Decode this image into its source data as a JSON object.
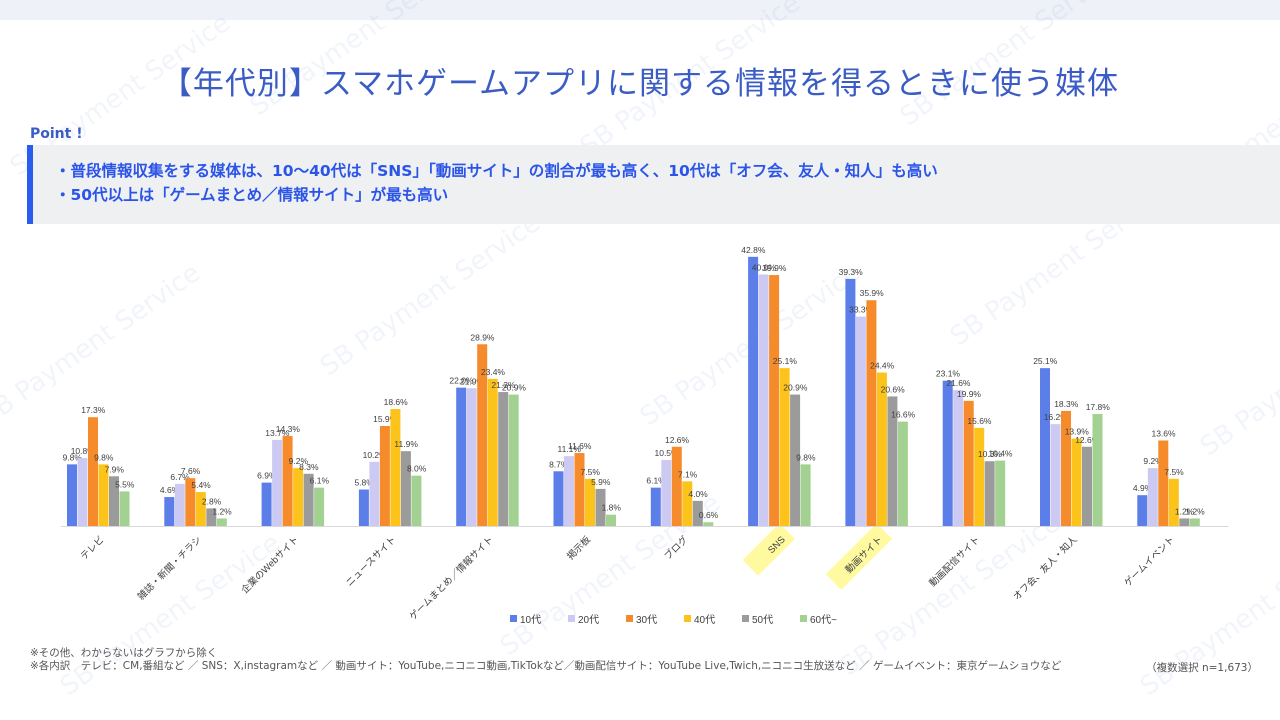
{
  "title": "【年代別】スマホゲームアプリに関する情報を得るときに使う媒体",
  "point": {
    "label": "Point !",
    "lines": [
      "・普段情報収集をする媒体は、10～40代は「SNS」「動画サイト」の割合が最も高く、10代は「オフ会、友人・知人」も高い",
      "・50代以上は「ゲームまとめ／情報サイト」が最も高い"
    ]
  },
  "watermark": "SB Payment Service",
  "chart_data": {
    "type": "bar",
    "categories": [
      "テレビ",
      "雑誌・新聞・チラシ",
      "企業のWebサイト",
      "ニュースサイト",
      "ゲームまとめ／情報サイト",
      "掲示板",
      "ブログ",
      "SNS",
      "動画サイト",
      "動画配信サイト",
      "オフ会、友人・知人",
      "ゲームイベント"
    ],
    "highlighted_categories": [
      "SNS",
      "動画サイト"
    ],
    "highlight_color": "#fffaa0",
    "series": [
      {
        "name": "10代",
        "color": "#5b7ee8",
        "values": [
          9.8,
          4.6,
          6.9,
          5.8,
          22.0,
          8.7,
          6.1,
          42.8,
          39.3,
          23.1,
          25.1,
          4.9
        ]
      },
      {
        "name": "20代",
        "color": "#cccaf2",
        "values": [
          10.8,
          6.7,
          13.7,
          10.2,
          21.9,
          11.1,
          10.5,
          40.0,
          33.3,
          21.6,
          16.2,
          9.2
        ]
      },
      {
        "name": "30代",
        "color": "#f58b2a",
        "values": [
          17.3,
          7.6,
          14.3,
          15.9,
          28.9,
          11.6,
          12.6,
          39.9,
          35.9,
          19.9,
          18.3,
          13.6
        ]
      },
      {
        "name": "40代",
        "color": "#fcc31a",
        "values": [
          9.8,
          5.4,
          9.2,
          18.6,
          23.4,
          7.5,
          7.1,
          25.1,
          24.4,
          15.6,
          13.9,
          7.5
        ]
      },
      {
        "name": "50代",
        "color": "#9b9b9b",
        "values": [
          7.9,
          2.8,
          8.3,
          11.9,
          21.3,
          5.9,
          4.0,
          20.9,
          20.6,
          10.3,
          12.6,
          1.2
        ]
      },
      {
        "name": "60代~",
        "color": "#a3d192",
        "values": [
          5.5,
          1.2,
          6.1,
          8.0,
          20.9,
          1.8,
          0.6,
          9.8,
          16.6,
          10.4,
          17.8,
          1.2
        ]
      }
    ],
    "ylim": [
      0,
      45
    ],
    "unit": "%",
    "legend_position": "bottom",
    "grid": false
  },
  "notes": [
    "※その他、わからないはグラフから除く",
    "※各内訳　テレビ：CM,番組など ／ SNS：X,instagramなど ／ 動画サイト：YouTube,ニコニコ動画,TikTokなど／動画配信サイト：YouTube Live,Twich,ニコニコ生放送など ／ ゲームイベント：東京ゲームショウなど"
  ],
  "sample_note": "（複数選択 n=1,673）"
}
